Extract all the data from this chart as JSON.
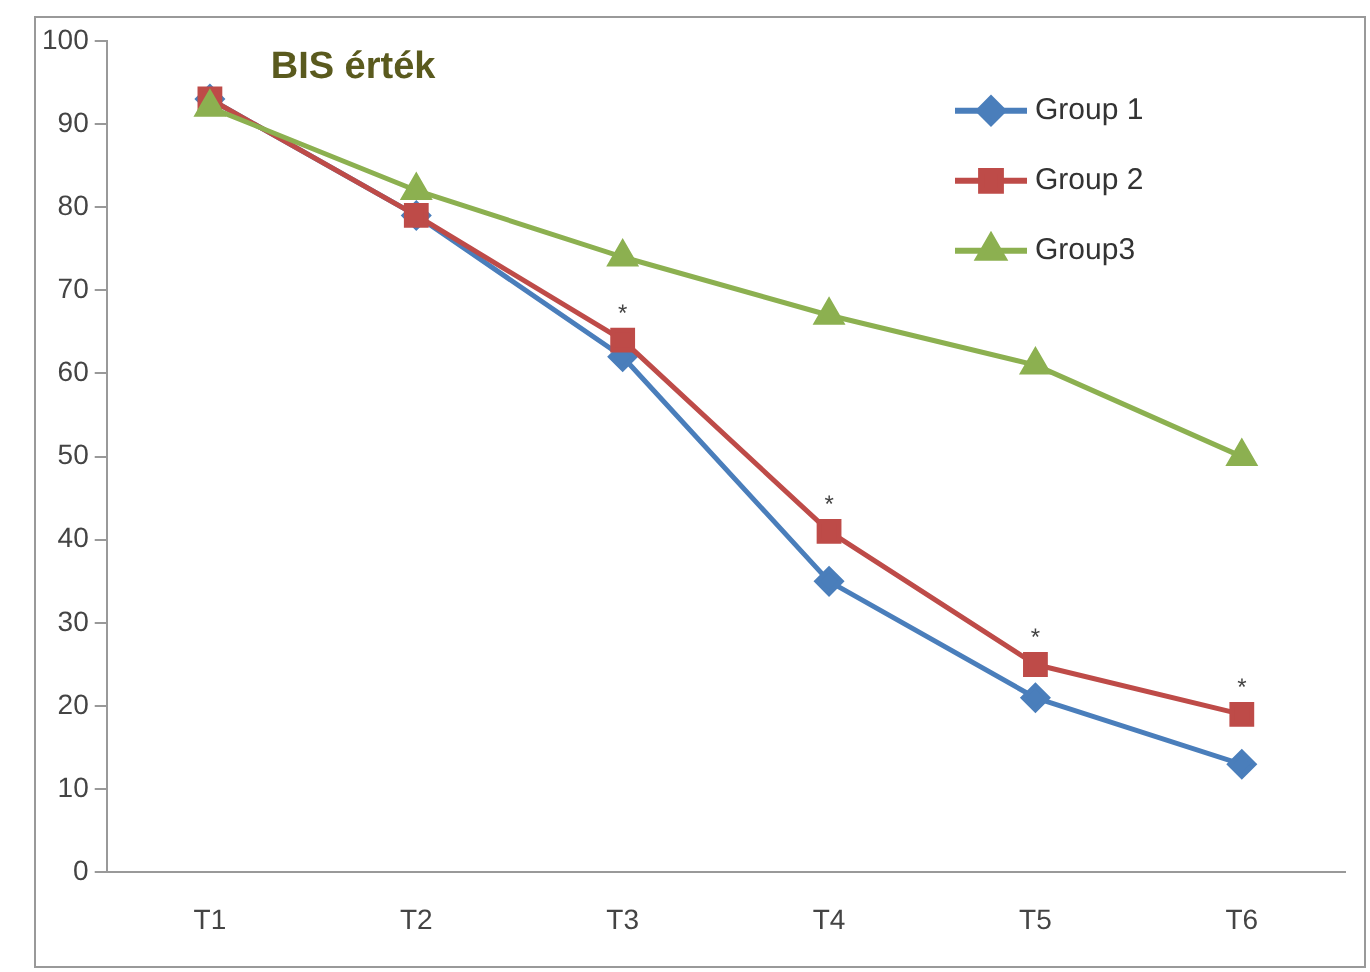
{
  "chart_data": {
    "type": "line",
    "title": "BIS érték",
    "categories": [
      "T1",
      "T2",
      "T3",
      "T4",
      "T5",
      "T6"
    ],
    "series": [
      {
        "name": "Group 1",
        "color": "#4a7ebb",
        "marker": "diamond",
        "values": [
          93,
          79,
          62,
          35,
          21,
          13
        ]
      },
      {
        "name": "Group 2",
        "color": "#be4b48",
        "marker": "square",
        "values": [
          93,
          79,
          64,
          41,
          25,
          19
        ]
      },
      {
        "name": "Group3",
        "color": "#8cb050",
        "marker": "triangle",
        "values": [
          92,
          82,
          74,
          67,
          61,
          50
        ]
      }
    ],
    "ylim": [
      0,
      100
    ],
    "yticks": [
      0,
      10,
      20,
      30,
      40,
      50,
      60,
      70,
      80,
      90,
      100
    ],
    "grid": false,
    "legend": "top right",
    "line_style": "solid",
    "annotations": [
      {
        "text": "*",
        "x": "T3",
        "y": 64
      },
      {
        "text": "*",
        "x": "T4",
        "y": 41
      },
      {
        "text": "*",
        "x": "T5",
        "y": 25
      },
      {
        "text": "*",
        "x": "T6",
        "y": 19
      }
    ]
  }
}
